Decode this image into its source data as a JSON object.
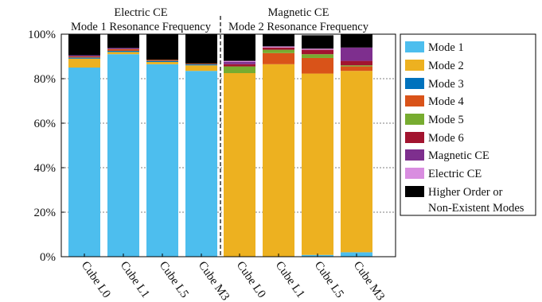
{
  "chart_data": {
    "type": "bar",
    "stacked": true,
    "ylim": [
      0,
      100
    ],
    "yticks": [
      0,
      20,
      40,
      60,
      80,
      100
    ],
    "ytick_labels": [
      "0%",
      "20%",
      "40%",
      "60%",
      "80%",
      "100%"
    ],
    "grid": "horizontal dashed",
    "legend_position": "right",
    "groups": [
      {
        "title_line1": "Electric CE",
        "title_line2": "Mode 1 Resonance Frequency"
      },
      {
        "title_line1": "Magnetic CE",
        "title_line2": "Mode 2 Resonance Frequency"
      }
    ],
    "categories": [
      "Cube L0",
      "Cube L1",
      "Cube L5",
      "Cube M3",
      "Cube L0",
      "Cube L1",
      "Cube L5",
      "Cube M3"
    ],
    "series": [
      {
        "name": "Mode 1",
        "color": "#4dbeee",
        "values": [
          85,
          91,
          86.5,
          83.5,
          0,
          0,
          0.8,
          2
        ]
      },
      {
        "name": "Mode 2",
        "color": "#edb120",
        "values": [
          4,
          1,
          1,
          2.5,
          82.5,
          86.5,
          81.5,
          81.5
        ]
      },
      {
        "name": "Mode 3",
        "color": "#0072bd",
        "values": [
          0.5,
          0.5,
          0.5,
          0.5,
          0,
          0,
          0,
          0
        ]
      },
      {
        "name": "Mode 4",
        "color": "#d95319",
        "values": [
          0.5,
          0.8,
          0.5,
          0.3,
          0,
          5,
          7,
          2
        ]
      },
      {
        "name": "Mode 5",
        "color": "#77ac30",
        "values": [
          0,
          0,
          0,
          0,
          3,
          1.5,
          1.7,
          0.5
        ]
      },
      {
        "name": "Mode 6",
        "color": "#a2142f",
        "values": [
          0,
          0,
          0,
          0,
          1,
          1,
          2,
          2
        ]
      },
      {
        "name": "Magnetic CE",
        "color": "#7e2f8e",
        "values": [
          0.5,
          0.5,
          0,
          0,
          1,
          0,
          0,
          6
        ]
      },
      {
        "name": "Electric CE",
        "color": "#d98de0",
        "values": [
          0,
          0,
          0,
          0,
          0.5,
          0.5,
          0.5,
          0
        ]
      },
      {
        "name": "Higher Order or Non-Existent Modes",
        "color": "#000000",
        "values": [
          9.5,
          6.2,
          11.5,
          13.2,
          12,
          5.5,
          6,
          6
        ]
      }
    ],
    "legend_labels": [
      [
        "Mode 1"
      ],
      [
        "Mode 2"
      ],
      [
        "Mode 3"
      ],
      [
        "Mode 4"
      ],
      [
        "Mode 5"
      ],
      [
        "Mode 6"
      ],
      [
        "Magnetic CE"
      ],
      [
        "Electric CE"
      ],
      [
        "Higher Order or",
        "Non-Existent Modes"
      ]
    ]
  }
}
